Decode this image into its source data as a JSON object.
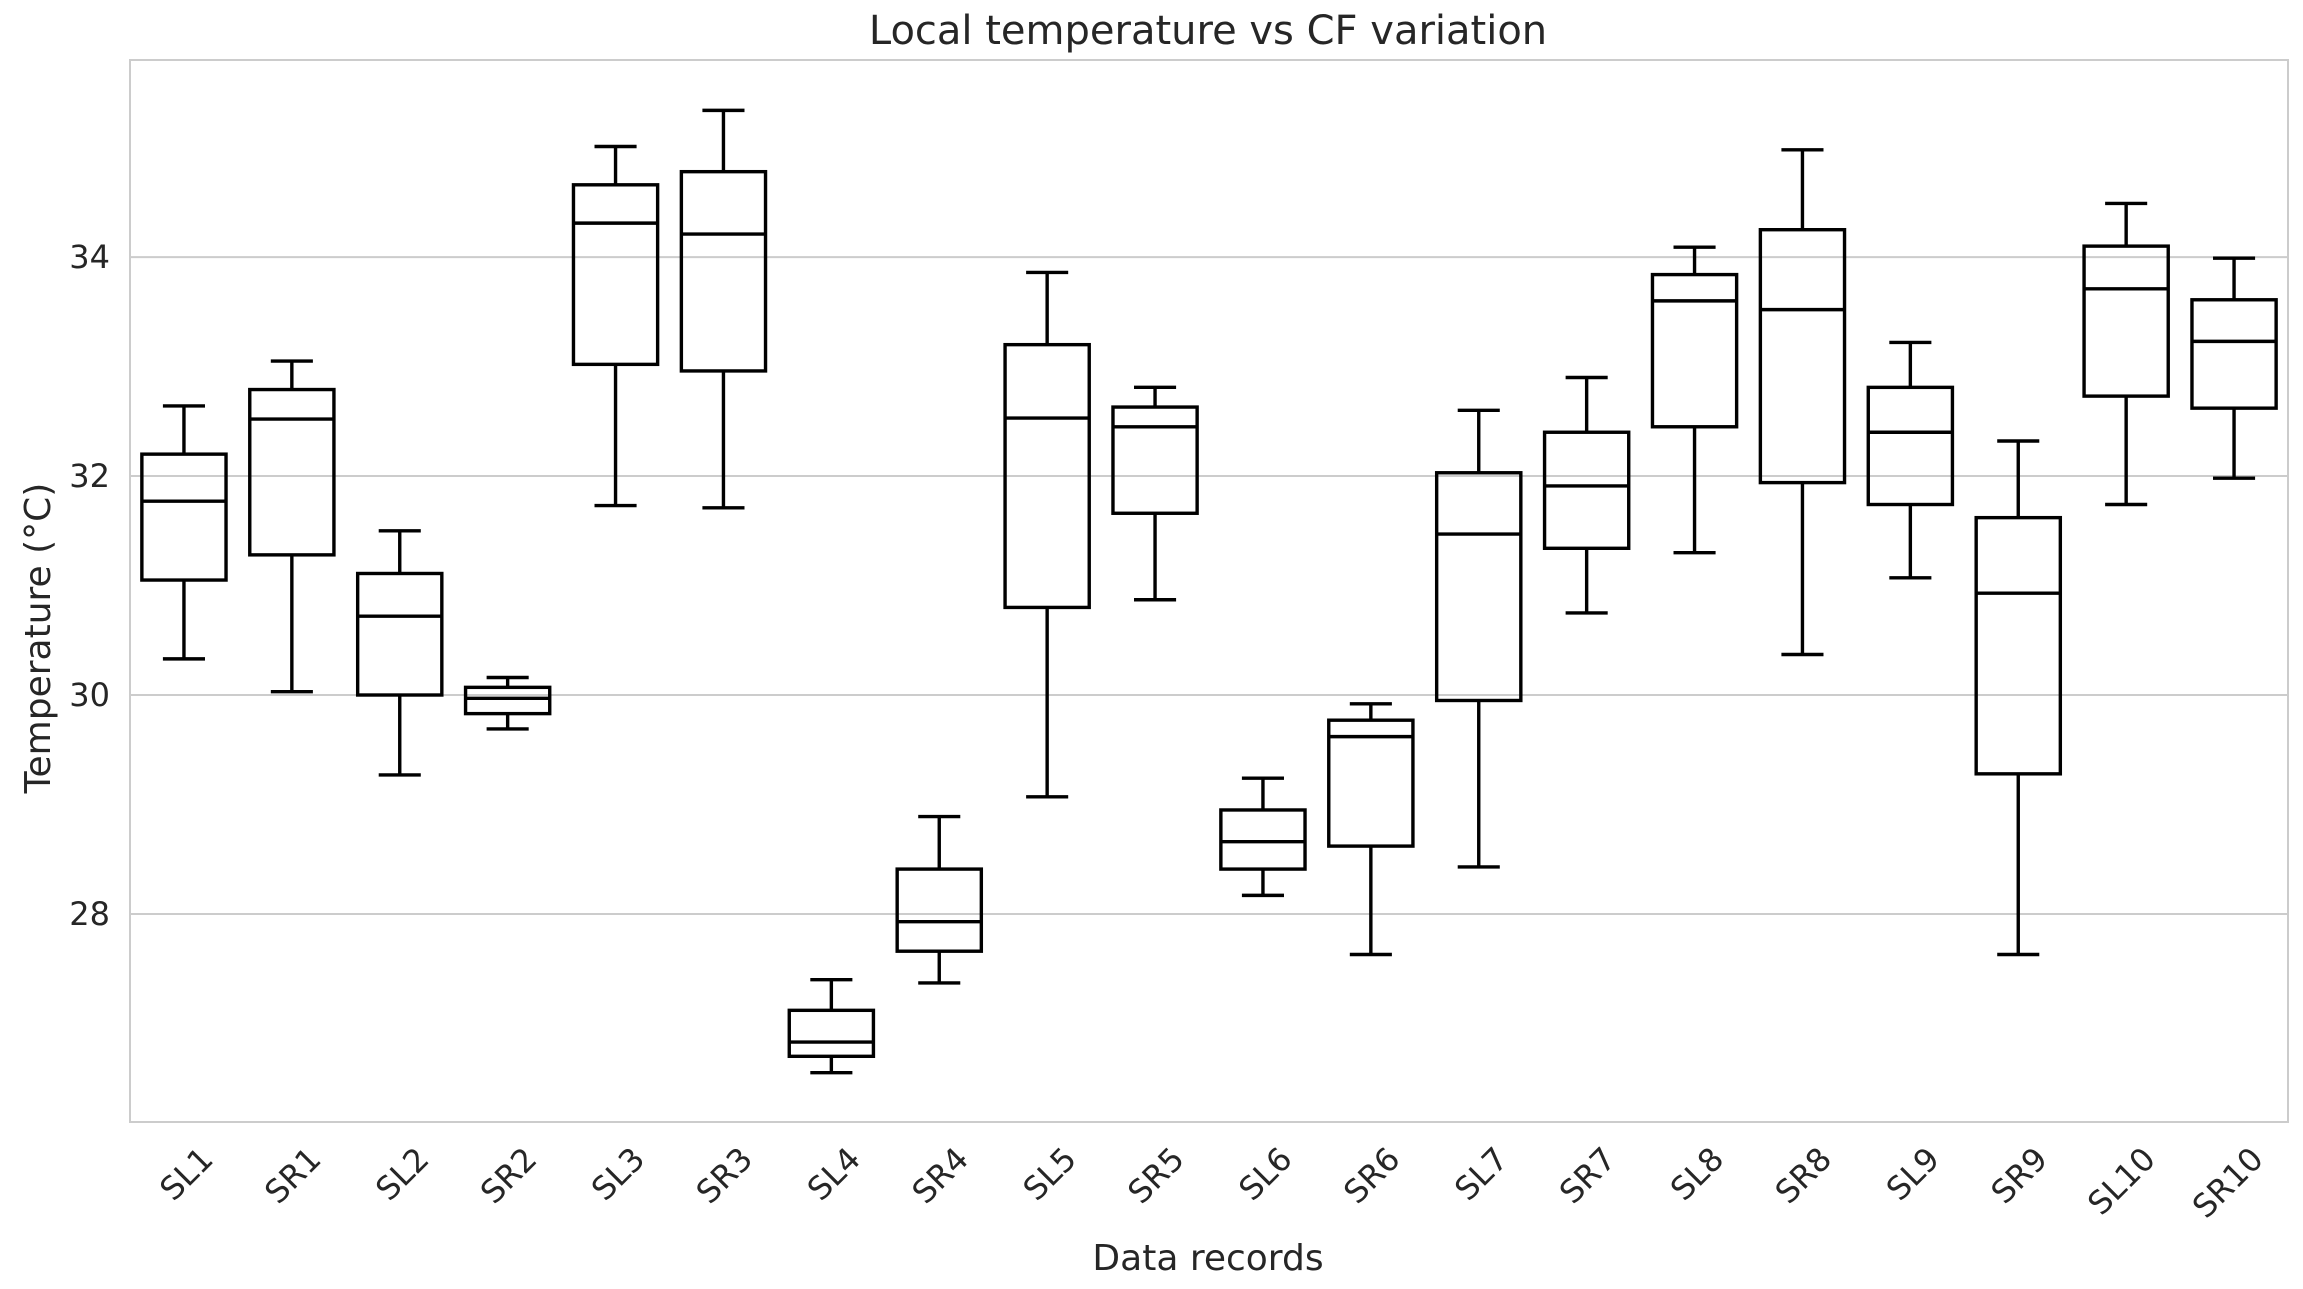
{
  "chart_data": {
    "type": "box",
    "title": "Local temperature vs CF variation",
    "xlabel": "Data records",
    "ylabel": "Temperature (°C)",
    "ylim": [
      26.1,
      35.8
    ],
    "yticks": [
      28,
      30,
      32,
      34
    ],
    "grid": "horizontal",
    "colors": {
      "box": "#000000",
      "grid": "#cccccc",
      "text": "#262626",
      "background": "#ffffff"
    },
    "categories": [
      "SL1",
      "SR1",
      "SL2",
      "SR2",
      "SL3",
      "SR3",
      "SL4",
      "SR4",
      "SL5",
      "SR5",
      "SL6",
      "SR6",
      "SL7",
      "SR7",
      "SL8",
      "SR8",
      "SL9",
      "SR9",
      "SL10",
      "SR10"
    ],
    "boxes": [
      {
        "label": "SL1",
        "whislo": 30.33,
        "q1": 31.05,
        "med": 31.77,
        "q3": 32.2,
        "whishi": 32.64
      },
      {
        "label": "SR1",
        "whislo": 30.03,
        "q1": 31.28,
        "med": 32.52,
        "q3": 32.79,
        "whishi": 33.05
      },
      {
        "label": "SL2",
        "whislo": 29.27,
        "q1": 30.0,
        "med": 30.72,
        "q3": 31.11,
        "whishi": 31.5
      },
      {
        "label": "SR2",
        "whislo": 29.69,
        "q1": 29.83,
        "med": 29.97,
        "q3": 30.07,
        "whishi": 30.16
      },
      {
        "label": "SL3",
        "whislo": 31.73,
        "q1": 33.02,
        "med": 34.31,
        "q3": 34.66,
        "whishi": 35.01
      },
      {
        "label": "SR3",
        "whislo": 31.71,
        "q1": 32.96,
        "med": 34.21,
        "q3": 34.78,
        "whishi": 35.34
      },
      {
        "label": "SL4",
        "whislo": 26.55,
        "q1": 26.7,
        "med": 26.83,
        "q3": 27.12,
        "whishi": 27.4
      },
      {
        "label": "SR4",
        "whislo": 27.37,
        "q1": 27.66,
        "med": 27.93,
        "q3": 28.41,
        "whishi": 28.89
      },
      {
        "label": "SL5",
        "whislo": 29.07,
        "q1": 30.8,
        "med": 32.53,
        "q3": 33.2,
        "whishi": 33.86
      },
      {
        "label": "SR5",
        "whislo": 30.87,
        "q1": 31.66,
        "med": 32.45,
        "q3": 32.63,
        "whishi": 32.81
      },
      {
        "label": "SL6",
        "whislo": 28.17,
        "q1": 28.41,
        "med": 28.66,
        "q3": 28.95,
        "whishi": 29.24
      },
      {
        "label": "SR6",
        "whislo": 27.63,
        "q1": 28.62,
        "med": 29.62,
        "q3": 29.77,
        "whishi": 29.92
      },
      {
        "label": "SL7",
        "whislo": 28.43,
        "q1": 29.95,
        "med": 31.47,
        "q3": 32.03,
        "whishi": 32.6
      },
      {
        "label": "SR7",
        "whislo": 30.75,
        "q1": 31.34,
        "med": 31.91,
        "q3": 32.4,
        "whishi": 32.9
      },
      {
        "label": "SL8",
        "whislo": 31.3,
        "q1": 32.45,
        "med": 33.6,
        "q3": 33.84,
        "whishi": 34.09
      },
      {
        "label": "SR8",
        "whislo": 30.37,
        "q1": 31.94,
        "med": 33.52,
        "q3": 34.25,
        "whishi": 34.98
      },
      {
        "label": "SL9",
        "whislo": 31.07,
        "q1": 31.74,
        "med": 32.4,
        "q3": 32.81,
        "whishi": 33.22
      },
      {
        "label": "SR9",
        "whislo": 27.63,
        "q1": 29.28,
        "med": 30.93,
        "q3": 31.62,
        "whishi": 32.32
      },
      {
        "label": "SL10",
        "whislo": 31.74,
        "q1": 32.73,
        "med": 33.71,
        "q3": 34.1,
        "whishi": 34.49
      },
      {
        "label": "SR10",
        "whislo": 31.98,
        "q1": 32.62,
        "med": 33.23,
        "q3": 33.61,
        "whishi": 33.99
      }
    ]
  }
}
